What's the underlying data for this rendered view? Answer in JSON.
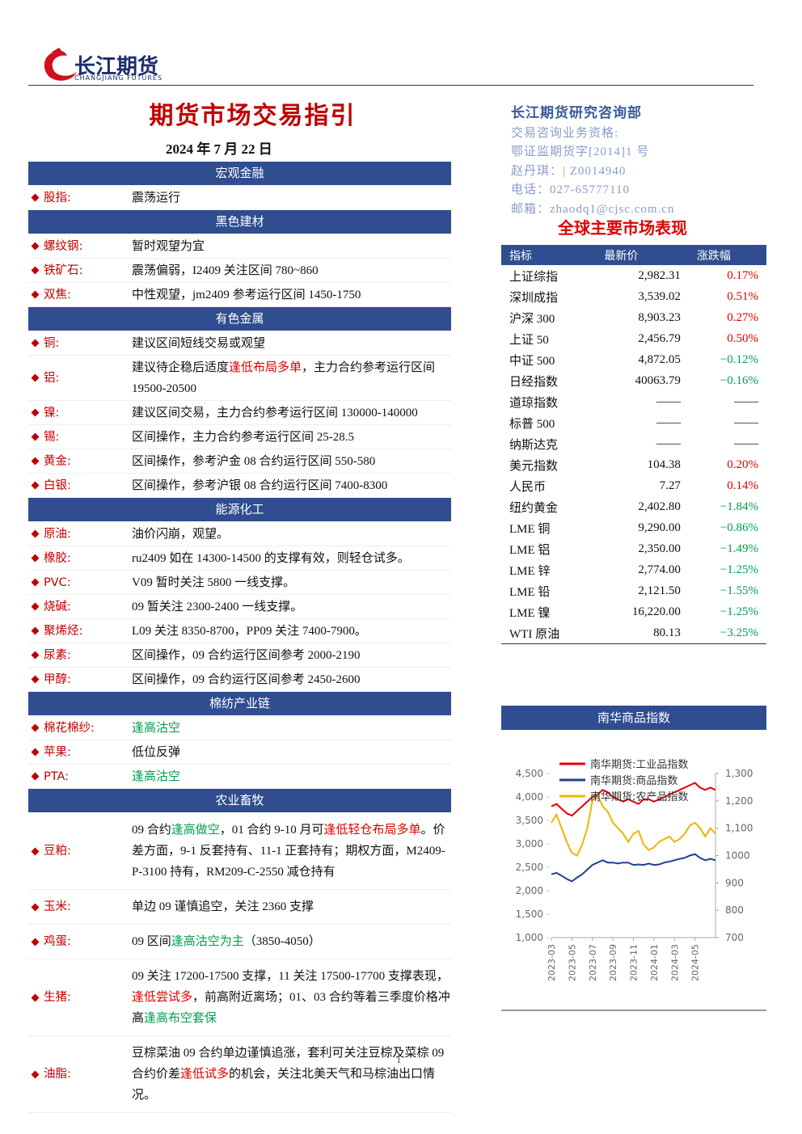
{
  "header": {
    "logo": "长江期货",
    "logo_en": "CHANGJIANG FUTURES"
  },
  "title": "期货市场交易指引",
  "date": "2024 年 7 月 22 日",
  "sections": [
    {
      "name": "宏观金融",
      "items": [
        {
          "label": "股指:",
          "text": [
            {
              "t": "震荡运行"
            }
          ]
        }
      ]
    },
    {
      "name": "黑色建材",
      "items": [
        {
          "label": "螺纹钢:",
          "text": [
            {
              "t": "暂时观望为宜"
            }
          ]
        },
        {
          "label": "铁矿石:",
          "text": [
            {
              "t": "震荡偏弱，I2409 关注区间 780~860"
            }
          ]
        },
        {
          "label": "双焦:",
          "text": [
            {
              "t": "中性观望，jm2409 参考运行区间 1450-1750"
            }
          ]
        }
      ]
    },
    {
      "name": "有色金属",
      "items": [
        {
          "label": "铜:",
          "text": [
            {
              "t": "建议区间短线交易或观望"
            }
          ]
        },
        {
          "label": "铝:",
          "text": [
            {
              "t": "建议待企稳后适度"
            },
            {
              "t": "逢低布局多单",
              "c": "red"
            },
            {
              "t": "，主力合约参考运行区间 19500-20500"
            }
          ]
        },
        {
          "label": "镍:",
          "text": [
            {
              "t": "建议区间交易，主力合约参考运行区间 130000-140000"
            }
          ]
        },
        {
          "label": "锡:",
          "text": [
            {
              "t": "区间操作，主力合约参考运行区间 25-28.5"
            }
          ]
        },
        {
          "label": "黄金:",
          "text": [
            {
              "t": "区间操作，参考沪金 08 合约运行区间 550-580"
            }
          ]
        },
        {
          "label": "白银:",
          "text": [
            {
              "t": "区间操作，参考沪银 08 合约运行区间 7400-8300"
            }
          ]
        }
      ]
    },
    {
      "name": "能源化工",
      "items": [
        {
          "label": "原油:",
          "text": [
            {
              "t": "油价闪崩，观望。"
            }
          ]
        },
        {
          "label": "橡胶:",
          "text": [
            {
              "t": "ru2409 如在 14300-14500 的支撑有效，则轻仓试多。"
            }
          ]
        },
        {
          "label": "PVC:",
          "text": [
            {
              "t": "V09 暂时关注 5800 一线支撑。"
            }
          ]
        },
        {
          "label": "烧碱:",
          "text": [
            {
              "t": "09 暂关注 2300-2400 一线支撑。"
            }
          ]
        },
        {
          "label": "聚烯烃:",
          "text": [
            {
              "t": "L09 关注 8350-8700，PP09 关注 7400-7900。"
            }
          ]
        },
        {
          "label": "尿素:",
          "text": [
            {
              "t": "区间操作，09 合约运行区间参考 2000-2190"
            }
          ]
        },
        {
          "label": "甲醇:",
          "text": [
            {
              "t": "区间操作，09 合约运行区间参考 2450-2600"
            }
          ]
        }
      ]
    },
    {
      "name": "棉纺产业链",
      "items": [
        {
          "label": "棉花棉纱:",
          "text": [
            {
              "t": "逢高沽空",
              "c": "green"
            }
          ]
        },
        {
          "label": "苹果:",
          "text": [
            {
              "t": "低位反弹"
            }
          ]
        },
        {
          "label": "PTA:",
          "text": [
            {
              "t": "逢高沽空",
              "c": "green"
            }
          ]
        }
      ]
    },
    {
      "name": "农业畜牧",
      "items": [
        {
          "label": "豆粕:",
          "text": [
            {
              "t": "09 合约"
            },
            {
              "t": "逢高做空",
              "c": "green"
            },
            {
              "t": "，01 合约 9-10 月可"
            },
            {
              "t": "逢低轻仓布局多单",
              "c": "red"
            },
            {
              "t": "。价差方面，9-1 反套持有、11-1 正套持有；期权方面，M2409-P-3100 持有，RM209-C-2550 减仓持有"
            }
          ]
        },
        {
          "label": "玉米:",
          "text": [
            {
              "t": "单边 09 谨慎追空，关注 2360 支撑"
            }
          ]
        },
        {
          "label": "鸡蛋:",
          "text": [
            {
              "t": "09 区间"
            },
            {
              "t": "逢高沽空为主",
              "c": "green"
            },
            {
              "t": "（3850-4050）"
            }
          ]
        },
        {
          "label": "生猪:",
          "text": [
            {
              "t": "09 关注 17200-17500 支撑，11 关注 17500-17700 支撑表现，"
            },
            {
              "t": "逢低尝试多",
              "c": "red"
            },
            {
              "t": "，前高附近离场；01、03 合约等着三季度价格冲高"
            },
            {
              "t": "逢高布空套保",
              "c": "green"
            }
          ]
        },
        {
          "label": "油脂:",
          "text": [
            {
              "t": "豆棕菜油 09 合约单边谨慎追涨，套利可关注豆棕及菜棕 09 合约价差"
            },
            {
              "t": "逢低试多",
              "c": "red"
            },
            {
              "t": "的机会，关注北美天气和马棕油出口情况。"
            }
          ]
        }
      ]
    }
  ],
  "contact": {
    "dept": "长江期货研究咨询部",
    "lines": [
      "交易咨询业务资格:",
      "鄂证监期货字[2014]1 号",
      "赵丹琪：| Z0014940",
      "电话：027-65777110",
      "邮箱：zhaodq1@cjsc.com.cn"
    ]
  },
  "market": {
    "title": "全球主要市场表现",
    "columns": [
      "指标",
      "最新价",
      "涨跌幅"
    ],
    "rows": [
      [
        "上证综指",
        "2,982.31",
        "0.17%"
      ],
      [
        "深圳成指",
        "3,539.02",
        "0.51%"
      ],
      [
        "沪深 300",
        "8,903.23",
        "0.27%"
      ],
      [
        "上证 50",
        "2,456.79",
        "0.50%"
      ],
      [
        "中证 500",
        "4,872.05",
        "−0.12%"
      ],
      [
        "日经指数",
        "40063.79",
        "−0.16%"
      ],
      [
        "道琼指数",
        "——",
        "——"
      ],
      [
        "标普 500",
        "——",
        "——"
      ],
      [
        "纳斯达克",
        "——",
        "——"
      ],
      [
        "美元指数",
        "104.38",
        "0.20%"
      ],
      [
        "人民币",
        "7.27",
        "0.14%"
      ],
      [
        "纽约黄金",
        "2,402.80",
        "−1.84%"
      ],
      [
        "LME 铜",
        "9,290.00",
        "−0.86%"
      ],
      [
        "LME 铝",
        "2,350.00",
        "−1.49%"
      ],
      [
        "LME 锌",
        "2,774.00",
        "−1.25%"
      ],
      [
        "LME 铅",
        "2,121.50",
        "−1.55%"
      ],
      [
        "LME 镍",
        "16,220.00",
        "−1.25%"
      ],
      [
        "WTI 原油",
        "80.13",
        "−3.25%"
      ]
    ]
  },
  "chart_data": {
    "type": "line",
    "title": "南华商品指数",
    "categories": [
      "2023-03",
      null,
      null,
      null,
      "2023-05",
      null,
      null,
      null,
      "2023-07",
      null,
      null,
      null,
      "2023-09",
      null,
      null,
      null,
      "2023-11",
      null,
      null,
      null,
      "2024-01",
      null,
      null,
      null,
      "2024-03",
      null,
      null,
      null,
      "2024-05",
      null,
      null,
      null,
      null
    ],
    "series": [
      {
        "name": "南华期货:工业品指数",
        "color": "#e00000",
        "values": [
          3800,
          3850,
          3750,
          3650,
          3600,
          3700,
          3800,
          3900,
          4000,
          4050,
          4150,
          4100,
          4000,
          3950,
          3900,
          3950,
          3900,
          3850,
          3950,
          3950,
          3900,
          3950,
          4000,
          4050,
          4100,
          4150,
          4200,
          4250,
          4300,
          4200,
          4150,
          4200,
          4150
        ]
      },
      {
        "name": "南华期货:商品指数",
        "color": "#1f3f8f",
        "values": [
          2350,
          2380,
          2320,
          2250,
          2200,
          2280,
          2350,
          2450,
          2550,
          2600,
          2650,
          2600,
          2600,
          2580,
          2600,
          2600,
          2550,
          2560,
          2550,
          2580,
          2550,
          2560,
          2600,
          2620,
          2650,
          2680,
          2700,
          2750,
          2780,
          2700,
          2650,
          2680,
          2650
        ]
      },
      {
        "name": "南华期货:农产品指数",
        "color": "#f0b400",
        "axis": "y2",
        "values": [
          1120,
          1150,
          1100,
          1050,
          1010,
          1000,
          1040,
          1100,
          1200,
          1220,
          1180,
          1160,
          1120,
          1100,
          1080,
          1050,
          1080,
          1090,
          1040,
          1020,
          1030,
          1050,
          1060,
          1070,
          1050,
          1060,
          1080,
          1110,
          1120,
          1100,
          1070,
          1100,
          1080
        ]
      }
    ],
    "ylim": [
      1000,
      4500
    ],
    "yticks": [
      {
        "value": 1000,
        "label": "1,000"
      },
      {
        "value": 1500,
        "label": "1,500"
      },
      {
        "value": 2000,
        "label": "2,000"
      },
      {
        "value": 2500,
        "label": "2,500"
      },
      {
        "value": 3000,
        "label": "3,000"
      },
      {
        "value": 3500,
        "label": "3,500"
      },
      {
        "value": 4000,
        "label": "4,000"
      },
      {
        "value": 4500,
        "label": "4,500"
      }
    ],
    "y2lim": [
      700,
      1300
    ],
    "y2ticks": [
      700,
      800,
      900,
      1000,
      {
        "value": 1100,
        "label": "1,100"
      },
      {
        "value": 1200,
        "label": "1,200"
      },
      {
        "value": 1300,
        "label": "1,300"
      }
    ]
  },
  "page_number": "1"
}
